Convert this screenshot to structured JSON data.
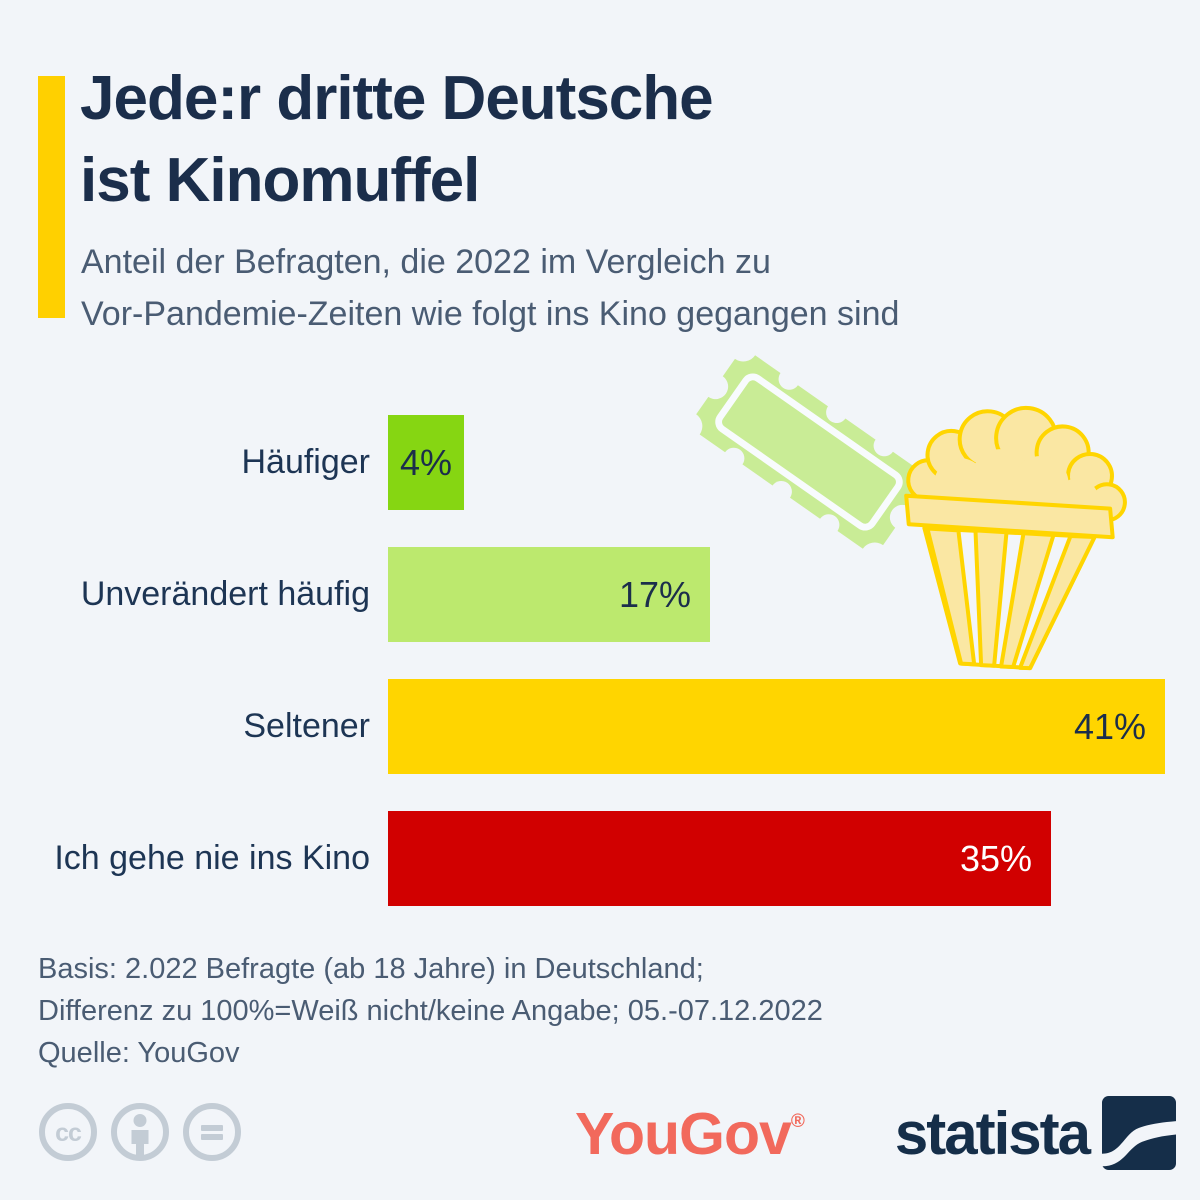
{
  "page": {
    "background": "#F2F5F9"
  },
  "header": {
    "title": "Jede:r dritte Deutsche\nist Kinomuffel",
    "subtitle": "Anteil der Befragten, die 2022 im Vergleich zu\nVor-Pandemie-Zeiten wie folgt ins Kino gegangen sind",
    "accent_color": "#FFD000"
  },
  "chart_data": {
    "type": "bar",
    "orientation": "horizontal",
    "title": "Jede:r dritte Deutsche ist Kinomuffel",
    "categories": [
      "Häufiger",
      "Unverändert häufig",
      "Seltener",
      "Ich gehe nie ins Kino"
    ],
    "values": [
      4,
      17,
      41,
      35
    ],
    "unit": "%",
    "bar_colors": [
      "#86D612",
      "#BCE96E",
      "#FFD500",
      "#D10000"
    ],
    "value_label_colors": [
      "#1B2E4B",
      "#1B2E4B",
      "#1B2E4B",
      "#FFFFFF"
    ],
    "xlim": [
      0,
      41
    ],
    "grid": false,
    "legend": false
  },
  "decorations": {
    "ticket_icon_color": "#C9EC96",
    "popcorn_fill_color": "#FAE7A3",
    "popcorn_stroke_color": "#FFD500"
  },
  "footer": {
    "basis": "Basis: 2.022 Befragte (ab 18 Jahre) in Deutschland;\nDifferenz zu 100%=Weiß nicht/keine Angabe; 05.-07.12.2022",
    "source": "Quelle: YouGov"
  },
  "branding": {
    "license_icons": [
      "cc",
      "by",
      "nd"
    ],
    "license_icon_color": "#C3CCD5",
    "yougov_label": "YouGov",
    "yougov_reg": "®",
    "yougov_color": "#F2695C",
    "statista_label": "statista",
    "statista_color": "#152E49"
  }
}
